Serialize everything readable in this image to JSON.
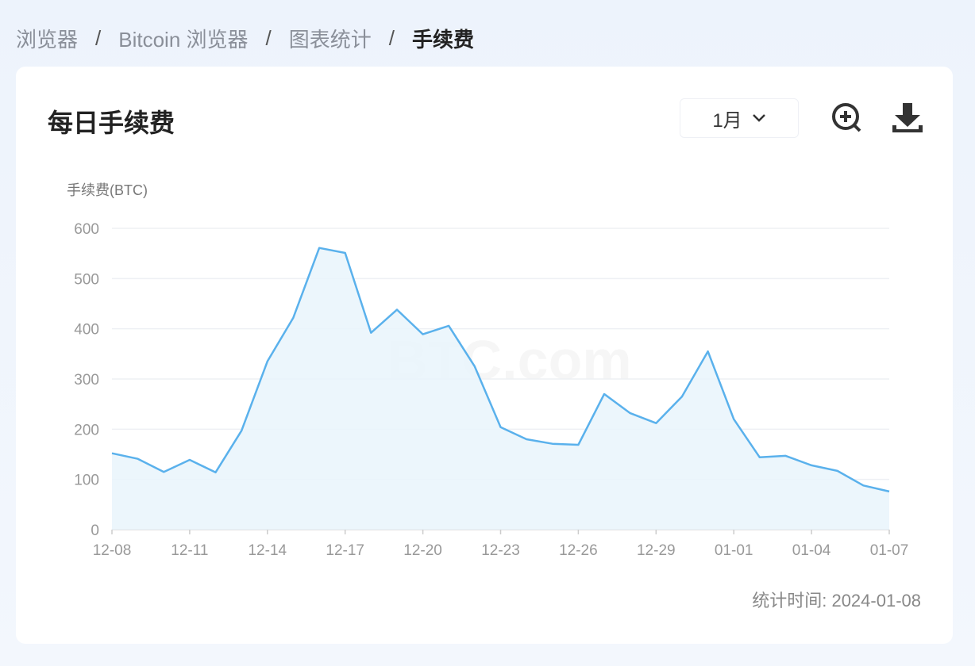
{
  "breadcrumb": [
    {
      "label": "浏览器"
    },
    {
      "label": "Bitcoin 浏览器"
    },
    {
      "label": "图表统计"
    },
    {
      "label": "手续费"
    }
  ],
  "breadcrumb_separator": "/",
  "card": {
    "title": "每日手续费",
    "period_select": "1月",
    "zoom_icon": "zoom-in-icon",
    "download_icon": "download-icon",
    "stat_time": "统计时间: 2024-01-08"
  },
  "watermark": "BTC.com",
  "colors": {
    "line": "#5ab1ec",
    "fill": "#e9f5fb",
    "grid": "#eef0f4"
  },
  "chart_data": {
    "type": "area",
    "ylabel": "手续费(BTC)",
    "ylim": [
      0,
      600
    ],
    "yticks": [
      0,
      100,
      200,
      300,
      400,
      500,
      600
    ],
    "grid": true,
    "x": [
      "12-08",
      "12-09",
      "12-10",
      "12-11",
      "12-12",
      "12-13",
      "12-14",
      "12-15",
      "12-16",
      "12-17",
      "12-18",
      "12-19",
      "12-20",
      "12-21",
      "12-22",
      "12-23",
      "12-24",
      "12-25",
      "12-26",
      "12-27",
      "12-28",
      "12-29",
      "12-30",
      "12-31",
      "01-01",
      "01-02",
      "01-03",
      "01-04",
      "01-05",
      "01-06",
      "01-07"
    ],
    "xtick_labels": [
      "12-08",
      "12-11",
      "12-14",
      "12-17",
      "12-20",
      "12-23",
      "12-26",
      "12-29",
      "01-01",
      "01-04",
      "01-07"
    ],
    "values": [
      152,
      141,
      115,
      139,
      114,
      197,
      335,
      422,
      561,
      551,
      392,
      438,
      389,
      406,
      325,
      204,
      180,
      171,
      169,
      270,
      232,
      212,
      265,
      355,
      220,
      144,
      147,
      128,
      117,
      88,
      76
    ]
  }
}
